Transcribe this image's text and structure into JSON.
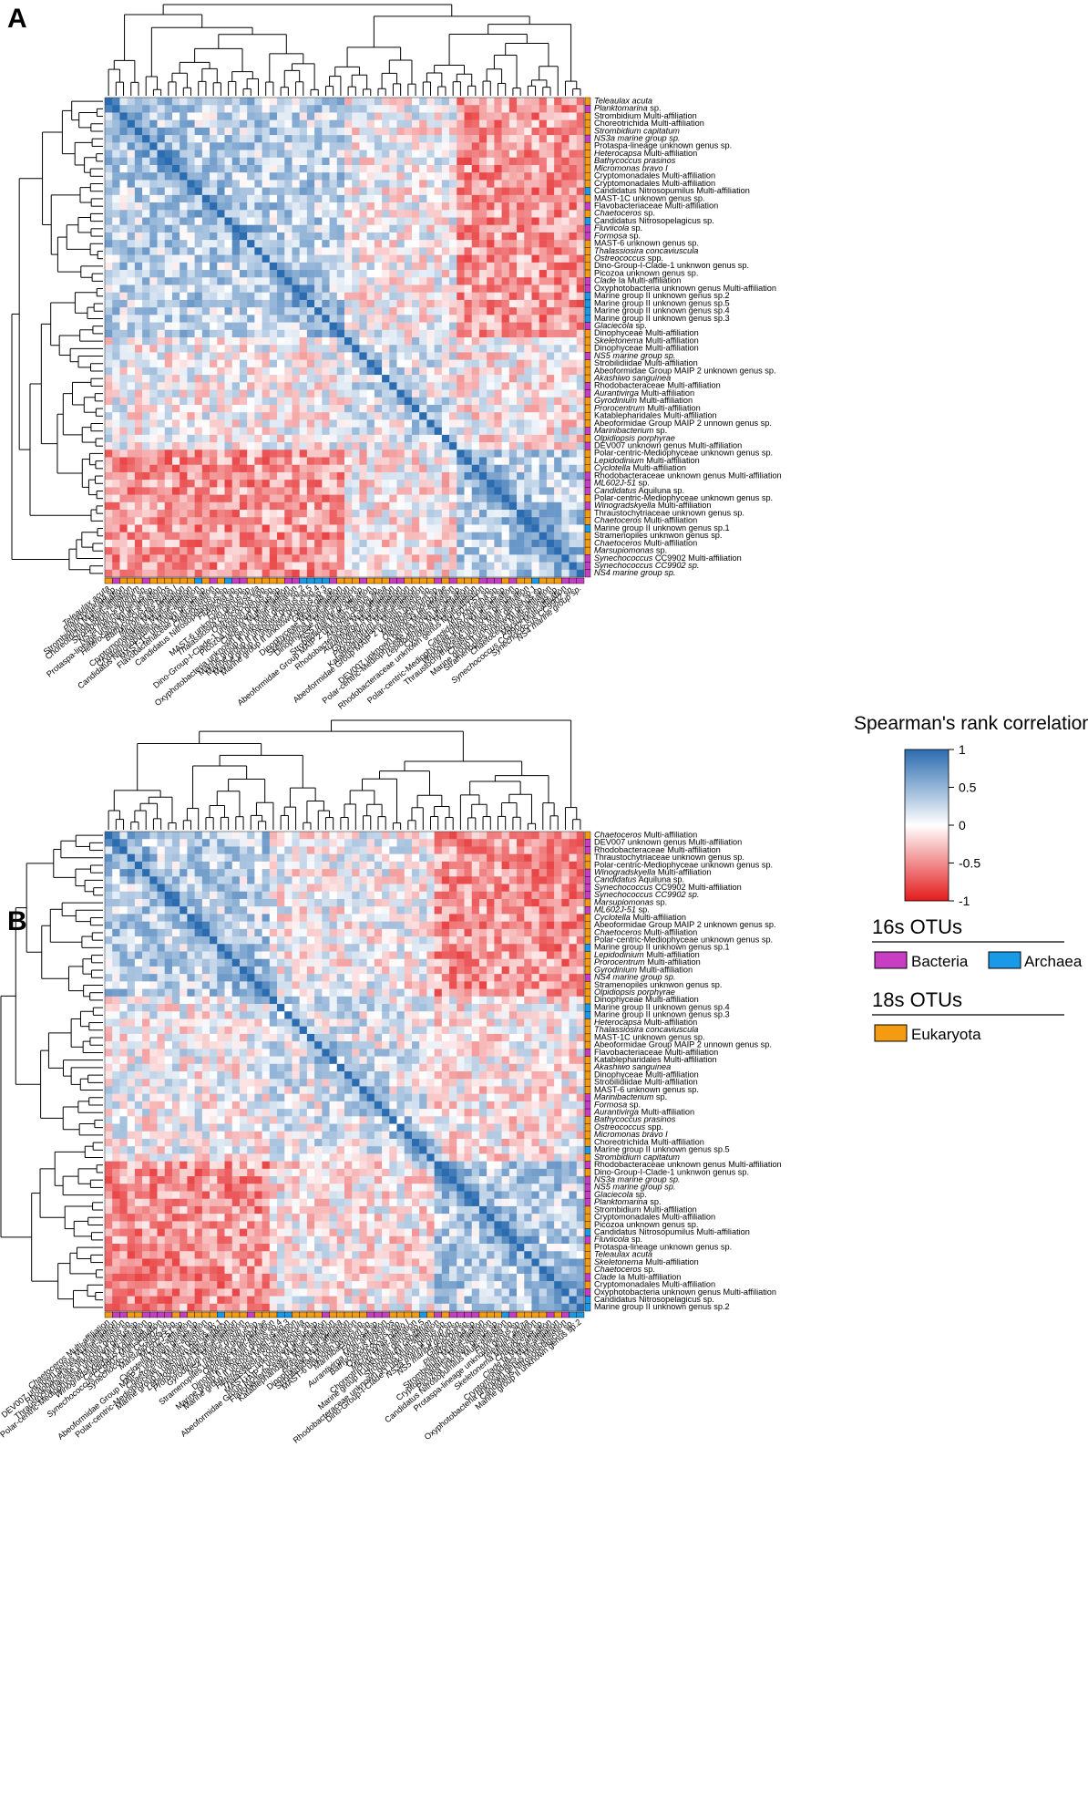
{
  "chart_data": [
    {
      "type": "heatmap",
      "panel": "A",
      "title": "Spearman's rank correlation",
      "value_range": [
        -1,
        1
      ],
      "values_note": "Clustered Spearman correlation matrix between OTUs (diagonal = 1); off-diagonal cells approximated from visual color.",
      "group_block_boundaries": [
        32,
        47
      ],
      "labels": [
        {
          "name": "Teleaulax acuta",
          "group": "Eukaryota",
          "italic": true
        },
        {
          "name": "Planktomarina sp.",
          "group": "Bacteria",
          "italic": "part"
        },
        {
          "name": "Strombidium Multi-affiliation",
          "group": "Eukaryota",
          "italic": false
        },
        {
          "name": "Choreotrichida Multi-affiliation",
          "group": "Eukaryota",
          "italic": false
        },
        {
          "name": "Strombidium capitatum",
          "group": "Eukaryota",
          "italic": true
        },
        {
          "name": "NS3a marine group sp.",
          "group": "Bacteria",
          "italic": true
        },
        {
          "name": "Protaspa-lineage unknown genus sp.",
          "group": "Eukaryota",
          "italic": false
        },
        {
          "name": "Heterocapsa Multi-affiliation",
          "group": "Eukaryota",
          "italic": "part"
        },
        {
          "name": "Bathycoccus prasinos",
          "group": "Eukaryota",
          "italic": true
        },
        {
          "name": "Micromonas bravo I",
          "group": "Eukaryota",
          "italic": true
        },
        {
          "name": "Cryptomonadales Multi-affiliation",
          "group": "Eukaryota",
          "italic": false
        },
        {
          "name": "Cryptomonadales Multi-affiliation",
          "group": "Eukaryota",
          "italic": false
        },
        {
          "name": "Candidatus Nitrosopumilus Multi-affiliation",
          "group": "Archaea",
          "italic": false
        },
        {
          "name": "MAST-1C unknown genus sp.",
          "group": "Eukaryota",
          "italic": false
        },
        {
          "name": "Flavobacteriaceae Multi-affiliation",
          "group": "Bacteria",
          "italic": false
        },
        {
          "name": "Chaetoceros sp.",
          "group": "Eukaryota",
          "italic": "part"
        },
        {
          "name": "Candidatus Nitrosopelagicus sp.",
          "group": "Archaea",
          "italic": false
        },
        {
          "name": "Fluviicola sp.",
          "group": "Bacteria",
          "italic": "part"
        },
        {
          "name": "Formosa sp.",
          "group": "Bacteria",
          "italic": "part"
        },
        {
          "name": "MAST-6 unknown genus sp.",
          "group": "Eukaryota",
          "italic": false
        },
        {
          "name": "Thalassiosira concaviuscula",
          "group": "Eukaryota",
          "italic": true
        },
        {
          "name": "Ostreococcus spp.",
          "group": "Eukaryota",
          "italic": "part"
        },
        {
          "name": "Dino-Group-I-Clade-1 unknwon genus sp.",
          "group": "Eukaryota",
          "italic": false
        },
        {
          "name": "Picozoa unknown genus sp.",
          "group": "Eukaryota",
          "italic": false
        },
        {
          "name": "Clade Ia Multi-affiliation",
          "group": "Bacteria",
          "italic": "part"
        },
        {
          "name": "Oxyphotobacteria unknown genus Multi-affiliation",
          "group": "Bacteria",
          "italic": false
        },
        {
          "name": "Marine group II unknown genus sp.2",
          "group": "Archaea",
          "italic": false
        },
        {
          "name": "Marine group II unknown genus sp.5",
          "group": "Archaea",
          "italic": false
        },
        {
          "name": "Marine group II unknown genus sp.4",
          "group": "Archaea",
          "italic": false
        },
        {
          "name": "Marine group II unknown genus sp.3",
          "group": "Archaea",
          "italic": false
        },
        {
          "name": "Glaciecola sp.",
          "group": "Bacteria",
          "italic": "part"
        },
        {
          "name": "Dinophyceae Multi-affiliation",
          "group": "Eukaryota",
          "italic": false
        },
        {
          "name": "Skeletonema Multi-affiliation",
          "group": "Eukaryota",
          "italic": "part"
        },
        {
          "name": "Dinophyceae Multi-affiliation",
          "group": "Eukaryota",
          "italic": false
        },
        {
          "name": "NS5 marine group sp.",
          "group": "Bacteria",
          "italic": true
        },
        {
          "name": "Strobilidiidae Multi-affiliation",
          "group": "Eukaryota",
          "italic": false
        },
        {
          "name": "Abeoformidae Group MAIP 2 unknown genus sp.",
          "group": "Eukaryota",
          "italic": false
        },
        {
          "name": "Akashiwo sanguinea",
          "group": "Eukaryota",
          "italic": true
        },
        {
          "name": "Rhodobacteraceae Multi-affiliation",
          "group": "Bacteria",
          "italic": false
        },
        {
          "name": "Aurantivirga Multi-affiliation",
          "group": "Bacteria",
          "italic": "part"
        },
        {
          "name": "Gyrodinium Multi-affiliation",
          "group": "Eukaryota",
          "italic": "part"
        },
        {
          "name": "Prorocentrum Multi-affiliation",
          "group": "Eukaryota",
          "italic": "part"
        },
        {
          "name": "Katablepharidales Multi-affiliation",
          "group": "Eukaryota",
          "italic": false
        },
        {
          "name": "Abeoformidae Group MAIP 2 unnown genus sp.",
          "group": "Eukaryota",
          "italic": false
        },
        {
          "name": "Marinibacterium sp.",
          "group": "Bacteria",
          "italic": "part"
        },
        {
          "name": "Olpidiopsis porphyrae",
          "group": "Eukaryota",
          "italic": true
        },
        {
          "name": "DEV007 unknown genus Multi-affiliation",
          "group": "Bacteria",
          "italic": false
        },
        {
          "name": "Polar-centric-Mediophyceae unknown genus sp.",
          "group": "Eukaryota",
          "italic": false
        },
        {
          "name": "Lepidodinium Multi-affiliation",
          "group": "Eukaryota",
          "italic": "part"
        },
        {
          "name": "Cyclotella Multi-affiliation",
          "group": "Eukaryota",
          "italic": "part"
        },
        {
          "name": "Rhodobacteraceae unknown genus Multi-affiliation",
          "group": "Bacteria",
          "italic": false
        },
        {
          "name": "ML602J-51 sp.",
          "group": "Bacteria",
          "italic": "part"
        },
        {
          "name": "Candidatus Aquiluna sp.",
          "group": "Bacteria",
          "italic": "part"
        },
        {
          "name": "Polar-centric-Mediophyceae unknown genus sp.",
          "group": "Eukaryota",
          "italic": false
        },
        {
          "name": "Winogradskyella Multi-affiliation",
          "group": "Bacteria",
          "italic": "part"
        },
        {
          "name": "Thraustochytriaceae unknown genus sp.",
          "group": "Eukaryota",
          "italic": false
        },
        {
          "name": "Chaetoceros Multi-affiliation",
          "group": "Eukaryota",
          "italic": "part"
        },
        {
          "name": "Marine group II unknown genus sp.1",
          "group": "Archaea",
          "italic": false
        },
        {
          "name": "Stramenopiles unknwon genus sp.",
          "group": "Eukaryota",
          "italic": false
        },
        {
          "name": "Chaetoceros Multi-affiliation",
          "group": "Eukaryota",
          "italic": "part"
        },
        {
          "name": "Marsupiomonas sp.",
          "group": "Eukaryota",
          "italic": "part"
        },
        {
          "name": "Synechococcus CC9902 Multi-affiliation",
          "group": "Bacteria",
          "italic": "part"
        },
        {
          "name": "Synechococcus CC9902 sp.",
          "group": "Bacteria",
          "italic": true
        },
        {
          "name": "NS4 marine group sp.",
          "group": "Bacteria",
          "italic": true
        }
      ]
    },
    {
      "type": "heatmap",
      "panel": "B",
      "title": "Spearman's rank correlation",
      "value_range": [
        -1,
        1
      ],
      "values_note": "Clustered Spearman correlation matrix between OTUs (diagonal = 1); off-diagonal cells approximated from visual color.",
      "group_block_boundaries": [
        22,
        44
      ],
      "labels": [
        {
          "name": "Chaetoceros Multi-affiliation",
          "group": "Eukaryota",
          "italic": "part"
        },
        {
          "name": "DEV007 unknown genus Multi-affiliation",
          "group": "Bacteria",
          "italic": false
        },
        {
          "name": "Rhodobacteraceae Multi-affiliation",
          "group": "Bacteria",
          "italic": false
        },
        {
          "name": "Thraustochytriaceae unknown genus sp.",
          "group": "Eukaryota",
          "italic": false
        },
        {
          "name": "Polar-centric-Mediophyceae unknown genus sp.",
          "group": "Eukaryota",
          "italic": false
        },
        {
          "name": "Winogradskyella Multi-affiliation",
          "group": "Bacteria",
          "italic": "part"
        },
        {
          "name": "Candidatus Aquiluna sp.",
          "group": "Bacteria",
          "italic": "part"
        },
        {
          "name": "Synechococcus CC9902 Multi-affiliation",
          "group": "Bacteria",
          "italic": "part"
        },
        {
          "name": "Synechococcus CC9902 sp.",
          "group": "Bacteria",
          "italic": true
        },
        {
          "name": "Marsupiomonas sp.",
          "group": "Eukaryota",
          "italic": "part"
        },
        {
          "name": "ML602J-51 sp.",
          "group": "Bacteria",
          "italic": "part"
        },
        {
          "name": "Cyclotella Multi-affiliation",
          "group": "Eukaryota",
          "italic": "part"
        },
        {
          "name": "Abeoformidae Group MAIP 2 unknown genus sp.",
          "group": "Eukaryota",
          "italic": false
        },
        {
          "name": "Chaetoceros Multi-affiliation",
          "group": "Eukaryota",
          "italic": "part"
        },
        {
          "name": "Polar-centric-Mediophyceae unknown genus sp.",
          "group": "Eukaryota",
          "italic": false
        },
        {
          "name": "Marine group II unknown genus sp.1",
          "group": "Archaea",
          "italic": false
        },
        {
          "name": "Lepidodinium Multi-affiliation",
          "group": "Eukaryota",
          "italic": "part"
        },
        {
          "name": "Prorocentrum Multi-affiliation",
          "group": "Eukaryota",
          "italic": "part"
        },
        {
          "name": "Gyrodinium Multi-affiliation",
          "group": "Eukaryota",
          "italic": "part"
        },
        {
          "name": "NS4 marine group sp.",
          "group": "Bacteria",
          "italic": true
        },
        {
          "name": "Stramenopiles unknwon genus sp.",
          "group": "Eukaryota",
          "italic": false
        },
        {
          "name": "Olpidiopsis porphyrae",
          "group": "Eukaryota",
          "italic": true
        },
        {
          "name": "Dinophyceae Multi-affiliation",
          "group": "Eukaryota",
          "italic": false
        },
        {
          "name": "Marine group II unknown genus sp.4",
          "group": "Archaea",
          "italic": false
        },
        {
          "name": "Marine group II unknown genus sp.3",
          "group": "Archaea",
          "italic": false
        },
        {
          "name": "Heterocapsa Multi-affiliation",
          "group": "Eukaryota",
          "italic": "part"
        },
        {
          "name": "Thalassiosira concaviuscula",
          "group": "Eukaryota",
          "italic": true
        },
        {
          "name": "MAST-1C unknown genus sp.",
          "group": "Eukaryota",
          "italic": false
        },
        {
          "name": "Abeoformidae Group MAIP 2 unnown genus sp.",
          "group": "Eukaryota",
          "italic": false
        },
        {
          "name": "Flavobacteriaceae Multi-affiliation",
          "group": "Bacteria",
          "italic": false
        },
        {
          "name": "Katablepharidales Multi-affiliation",
          "group": "Eukaryota",
          "italic": false
        },
        {
          "name": "Akashiwo sanguinea",
          "group": "Eukaryota",
          "italic": true
        },
        {
          "name": "Dinophyceae Multi-affiliation",
          "group": "Eukaryota",
          "italic": false
        },
        {
          "name": "Strobilidiidae Multi-affiliation",
          "group": "Eukaryota",
          "italic": false
        },
        {
          "name": "MAST-6 unknown genus sp.",
          "group": "Eukaryota",
          "italic": false
        },
        {
          "name": "Marinibacterium sp.",
          "group": "Bacteria",
          "italic": "part"
        },
        {
          "name": "Formosa sp.",
          "group": "Bacteria",
          "italic": "part"
        },
        {
          "name": "Aurantivirga Multi-affiliation",
          "group": "Bacteria",
          "italic": "part"
        },
        {
          "name": "Bathycoccus prasinos",
          "group": "Eukaryota",
          "italic": true
        },
        {
          "name": "Ostreococcus spp.",
          "group": "Eukaryota",
          "italic": "part"
        },
        {
          "name": "Micromonas bravo I",
          "group": "Eukaryota",
          "italic": true
        },
        {
          "name": "Choreotrichida Multi-affiliation",
          "group": "Eukaryota",
          "italic": false
        },
        {
          "name": "Marine group II unknown genus sp.5",
          "group": "Archaea",
          "italic": false
        },
        {
          "name": "Strombidium capitatum",
          "group": "Eukaryota",
          "italic": true
        },
        {
          "name": "Rhodobacteraceae unknown genus Multi-affiliation",
          "group": "Bacteria",
          "italic": false
        },
        {
          "name": "Dino-Group-I-Clade-1 unknwon genus sp.",
          "group": "Eukaryota",
          "italic": false
        },
        {
          "name": "NS3a marine group sp.",
          "group": "Bacteria",
          "italic": true
        },
        {
          "name": "NS5 marine group sp.",
          "group": "Bacteria",
          "italic": true
        },
        {
          "name": "Glaciecola sp.",
          "group": "Bacteria",
          "italic": "part"
        },
        {
          "name": "Planktomarina sp.",
          "group": "Bacteria",
          "italic": "part"
        },
        {
          "name": "Strombidium Multi-affiliation",
          "group": "Eukaryota",
          "italic": false
        },
        {
          "name": "Cryptomonadales Multi-affiliation",
          "group": "Eukaryota",
          "italic": false
        },
        {
          "name": "Picozoa unknown genus sp.",
          "group": "Eukaryota",
          "italic": false
        },
        {
          "name": "Candidatus Nitrosopumilus Multi-affiliation",
          "group": "Archaea",
          "italic": false
        },
        {
          "name": "Fluviicola sp.",
          "group": "Bacteria",
          "italic": "part"
        },
        {
          "name": "Protaspa-lineage unknown genus sp.",
          "group": "Eukaryota",
          "italic": false
        },
        {
          "name": "Teleaulax acuta",
          "group": "Eukaryota",
          "italic": true
        },
        {
          "name": "Skeletonema Multi-affiliation",
          "group": "Eukaryota",
          "italic": "part"
        },
        {
          "name": "Chaetoceros sp.",
          "group": "Eukaryota",
          "italic": "part"
        },
        {
          "name": "Clade Ia Multi-affiliation",
          "group": "Bacteria",
          "italic": "part"
        },
        {
          "name": "Cryptomonadales Multi-affiliation",
          "group": "Eukaryota",
          "italic": false
        },
        {
          "name": "Oxyphotobacteria unknown genus Multi-affiliation",
          "group": "Bacteria",
          "italic": false
        },
        {
          "name": "Candidatus Nitrosopelagicus sp.",
          "group": "Archaea",
          "italic": false
        },
        {
          "name": "Marine group II unknown genus sp.2",
          "group": "Archaea",
          "italic": false
        }
      ]
    }
  ],
  "legend": {
    "colorbar": {
      "title": "Spearman's rank correlation",
      "ticks": [
        "1",
        "0.5",
        "0",
        "-0.5",
        "-1"
      ],
      "tick_values": [
        1,
        0.5,
        0,
        -0.5,
        -1
      ],
      "color_high": "#2b6cb0",
      "color_mid": "#ffffff",
      "color_low": "#e41a1c"
    },
    "otu16s": {
      "title": "16s OTUs",
      "bacteria": "Bacteria",
      "archaea": "Archaea"
    },
    "otu18s": {
      "title": "18s OTUs",
      "eukaryota": "Eukaryota"
    }
  },
  "panel_letters": {
    "a": "A",
    "b": "B"
  },
  "colors": {
    "bacteria": "#c83ec3",
    "archaea": "#1a9ae6",
    "eukaryota": "#f39c12"
  }
}
